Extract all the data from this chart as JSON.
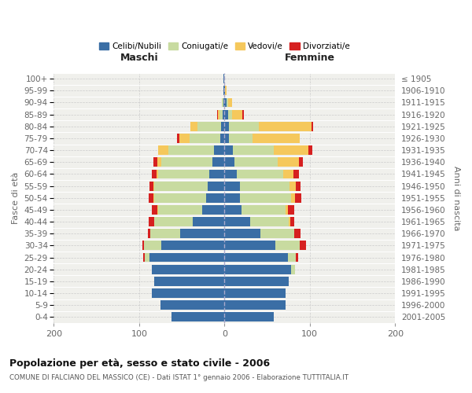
{
  "age_groups_top_to_bottom": [
    "100+",
    "95-99",
    "90-94",
    "85-89",
    "80-84",
    "75-79",
    "70-74",
    "65-69",
    "60-64",
    "55-59",
    "50-54",
    "45-49",
    "40-44",
    "35-39",
    "30-34",
    "25-29",
    "20-24",
    "15-19",
    "10-14",
    "5-9",
    "0-4"
  ],
  "birth_years_top_to_bottom": [
    "≤ 1905",
    "1906-1910",
    "1911-1915",
    "1916-1920",
    "1921-1925",
    "1926-1930",
    "1931-1935",
    "1936-1940",
    "1941-1945",
    "1946-1950",
    "1951-1955",
    "1956-1960",
    "1961-1965",
    "1966-1970",
    "1971-1975",
    "1976-1980",
    "1981-1985",
    "1986-1990",
    "1991-1995",
    "1996-2000",
    "2001-2005"
  ],
  "males_top_to_bottom": {
    "celibi": [
      1,
      1,
      1,
      2,
      4,
      5,
      12,
      14,
      18,
      20,
      22,
      26,
      37,
      52,
      74,
      88,
      85,
      82,
      85,
      75,
      62
    ],
    "coniugati": [
      0,
      0,
      2,
      4,
      28,
      36,
      54,
      60,
      60,
      62,
      60,
      52,
      45,
      35,
      20,
      5,
      0,
      0,
      0,
      0,
      0
    ],
    "vedovi": [
      0,
      0,
      0,
      2,
      8,
      12,
      12,
      5,
      2,
      1,
      1,
      1,
      0,
      0,
      0,
      0,
      0,
      0,
      0,
      0,
      0
    ],
    "divorziati": [
      0,
      0,
      0,
      1,
      0,
      3,
      0,
      4,
      5,
      5,
      6,
      6,
      7,
      3,
      2,
      2,
      0,
      0,
      0,
      0,
      0
    ]
  },
  "females_top_to_bottom": {
    "nubili": [
      0,
      1,
      2,
      4,
      5,
      5,
      10,
      12,
      14,
      18,
      18,
      20,
      30,
      42,
      60,
      74,
      78,
      75,
      72,
      72,
      58
    ],
    "coniugate": [
      0,
      0,
      2,
      5,
      35,
      28,
      48,
      50,
      55,
      58,
      60,
      52,
      45,
      40,
      28,
      10,
      5,
      0,
      0,
      0,
      0
    ],
    "vedove": [
      0,
      1,
      5,
      12,
      62,
      55,
      40,
      25,
      12,
      8,
      5,
      2,
      2,
      0,
      0,
      0,
      0,
      0,
      0,
      0,
      0
    ],
    "divorziate": [
      0,
      0,
      0,
      2,
      2,
      0,
      5,
      5,
      6,
      5,
      7,
      8,
      5,
      7,
      8,
      2,
      0,
      0,
      0,
      0,
      0
    ]
  },
  "colors": {
    "celibi": "#3a6ea5",
    "coniugati": "#c8dba0",
    "vedovi": "#f5c85c",
    "divorziati": "#d62020"
  },
  "title": "Popolazione per età, sesso e stato civile - 2006",
  "subtitle": "COMUNE DI FALCIANO DEL MASSICO (CE) - Dati ISTAT 1° gennaio 2006 - Elaborazione TUTTITALIA.IT",
  "label_maschi": "Maschi",
  "label_femmine": "Femmine",
  "ylabel_left": "Fasce di età",
  "ylabel_right": "Anni di nascita",
  "xlim": 200,
  "legend_labels": [
    "Celibi/Nubili",
    "Coniugati/e",
    "Vedovi/e",
    "Divorziati/e"
  ]
}
